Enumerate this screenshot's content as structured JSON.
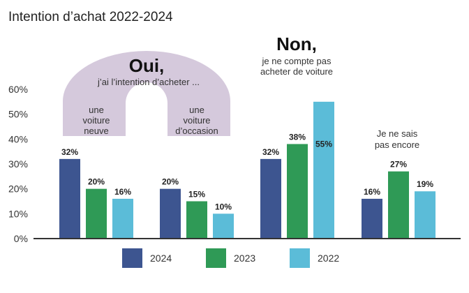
{
  "chart_data": {
    "type": "bar",
    "title": "Intention d’achat 2022-2024",
    "categories": [
      "une voiture neuve",
      "une voiture d’occasion",
      "Non",
      "Je ne sais pas encore"
    ],
    "series": [
      {
        "name": "2024",
        "values": [
          32,
          20,
          32,
          16
        ]
      },
      {
        "name": "2023",
        "values": [
          20,
          15,
          38,
          27
        ]
      },
      {
        "name": "2022",
        "values": [
          16,
          10,
          55,
          19
        ]
      }
    ],
    "value_labels": [
      [
        "32%",
        "20%",
        "32%",
        "16%"
      ],
      [
        "20%",
        "15%",
        "38%",
        "27%"
      ],
      [
        "16%",
        "10%",
        "55%",
        "19%"
      ]
    ],
    "yticks": [
      "0%",
      "10%",
      "20%",
      "30%",
      "40%",
      "50%",
      "60%"
    ],
    "ylim": [
      0,
      60
    ],
    "grid": false,
    "legend_position": "bottom"
  },
  "colors": {
    "2024": "#3d5590",
    "2023": "#2f9a56",
    "2022": "#5bbcd8",
    "arch": "#d5c9dc",
    "axis": "#333333"
  },
  "annotations": {
    "oui_title": "Oui,",
    "oui_sub": "j’ai l’intention d’acheter ...",
    "new_car": [
      "une",
      "voiture",
      "neuve"
    ],
    "used_car": [
      "une",
      "voiture",
      "d’occasion"
    ],
    "non_title": "Non,",
    "non_sub": [
      "je ne compte pas",
      "acheter de voiture"
    ],
    "unsure": [
      "Je ne sais",
      "pas encore"
    ]
  }
}
